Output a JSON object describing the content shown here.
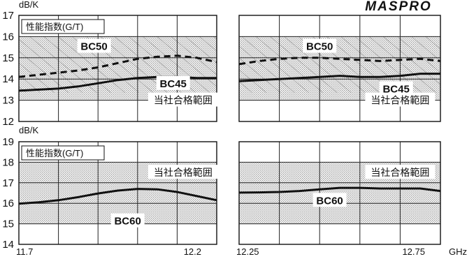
{
  "logo_text": "MASPRO",
  "unit_top": "dB/K",
  "unit_bottom": "dB/K",
  "freq_unit": "GHz",
  "chart_data": [
    {
      "type": "line",
      "panel": "top-left",
      "title": "性能指数(G/T)",
      "xlim": [
        11.7,
        12.2
      ],
      "ylim": [
        12,
        17
      ],
      "y_ticks": [
        12,
        13,
        14,
        15,
        16,
        17
      ],
      "shaded_band": [
        13,
        16
      ],
      "band_label": "当社合格範囲",
      "series": [
        {
          "name": "BC50",
          "style": "dashed",
          "x": [
            11.7,
            11.75,
            11.8,
            11.85,
            11.9,
            11.95,
            12.0,
            12.05,
            12.1,
            12.15,
            12.2
          ],
          "y": [
            14.1,
            14.2,
            14.3,
            14.4,
            14.55,
            14.75,
            14.95,
            15.05,
            15.1,
            15.0,
            14.8
          ]
        },
        {
          "name": "BC45",
          "style": "solid",
          "x": [
            11.7,
            11.75,
            11.8,
            11.85,
            11.9,
            11.95,
            12.0,
            12.05,
            12.1,
            12.15,
            12.2
          ],
          "y": [
            13.45,
            13.5,
            13.55,
            13.65,
            13.8,
            13.95,
            14.05,
            14.1,
            14.1,
            14.05,
            14.05
          ]
        }
      ]
    },
    {
      "type": "line",
      "panel": "top-right",
      "title": "",
      "xlim": [
        12.25,
        12.75
      ],
      "ylim": [
        12,
        17
      ],
      "y_ticks": [
        12,
        13,
        14,
        15,
        16,
        17
      ],
      "shaded_band": [
        13,
        16
      ],
      "band_label": "当社合格範囲",
      "series": [
        {
          "name": "BC50",
          "style": "dashed",
          "x": [
            12.25,
            12.3,
            12.35,
            12.4,
            12.45,
            12.5,
            12.55,
            12.6,
            12.65,
            12.7,
            12.75
          ],
          "y": [
            14.7,
            14.85,
            14.95,
            15.0,
            15.0,
            14.95,
            14.9,
            14.85,
            14.9,
            14.95,
            14.85
          ]
        },
        {
          "name": "BC45",
          "style": "solid",
          "x": [
            12.25,
            12.3,
            12.35,
            12.4,
            12.45,
            12.5,
            12.55,
            12.6,
            12.65,
            12.7,
            12.75
          ],
          "y": [
            13.9,
            13.95,
            14.0,
            14.05,
            14.1,
            14.15,
            14.1,
            14.1,
            14.15,
            14.25,
            14.25
          ]
        }
      ]
    },
    {
      "type": "line",
      "panel": "bottom-left",
      "title": "性能指数(G/T)",
      "xlim": [
        11.7,
        12.2
      ],
      "ylim": [
        14,
        19
      ],
      "y_ticks": [
        14,
        15,
        16,
        17,
        18,
        19
      ],
      "x_ticks": [
        "11.7",
        "12.2"
      ],
      "shaded_band": [
        15,
        18
      ],
      "band_label": "当社合格範囲",
      "series": [
        {
          "name": "BC60",
          "style": "solid",
          "x": [
            11.7,
            11.75,
            11.8,
            11.85,
            11.9,
            11.95,
            12.0,
            12.05,
            12.1,
            12.15,
            12.2
          ],
          "y": [
            15.98,
            16.05,
            16.15,
            16.3,
            16.48,
            16.62,
            16.7,
            16.68,
            16.55,
            16.35,
            16.15
          ]
        }
      ]
    },
    {
      "type": "line",
      "panel": "bottom-right",
      "title": "",
      "xlim": [
        12.25,
        12.75
      ],
      "ylim": [
        14,
        19
      ],
      "y_ticks": [
        14,
        15,
        16,
        17,
        18,
        19
      ],
      "x_ticks": [
        "12.25",
        "12.75"
      ],
      "shaded_band": [
        15,
        18
      ],
      "band_label": "当社合格範囲",
      "series": [
        {
          "name": "BC60",
          "style": "solid",
          "x": [
            12.25,
            12.3,
            12.35,
            12.4,
            12.45,
            12.5,
            12.55,
            12.6,
            12.65,
            12.7,
            12.75
          ],
          "y": [
            16.52,
            16.53,
            16.55,
            16.6,
            16.68,
            16.75,
            16.75,
            16.72,
            16.72,
            16.72,
            16.6
          ]
        }
      ]
    }
  ]
}
